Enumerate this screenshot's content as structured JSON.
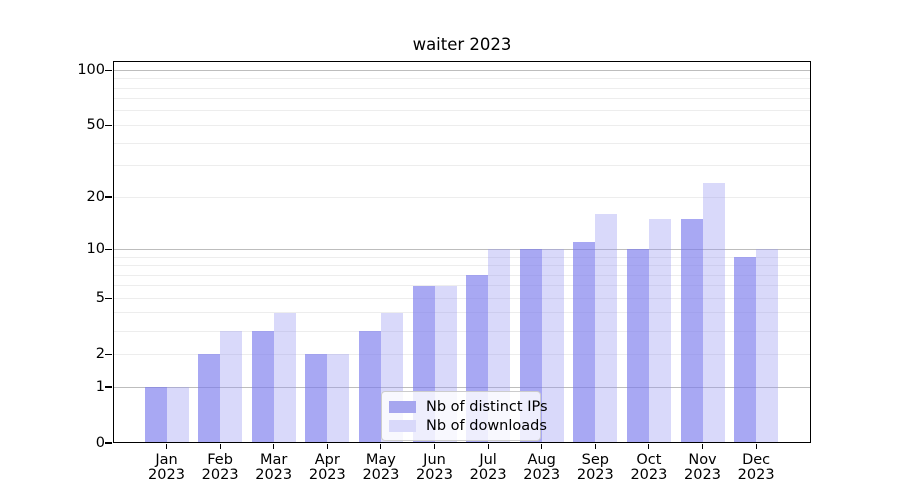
{
  "title": "waiter 2023",
  "chart_data": {
    "type": "bar",
    "title": "waiter 2023",
    "categories": [
      "Jan 2023",
      "Feb 2023",
      "Mar 2023",
      "Apr 2023",
      "May 2023",
      "Jun 2023",
      "Jul 2023",
      "Aug 2023",
      "Sep 2023",
      "Oct 2023",
      "Nov 2023",
      "Dec 2023"
    ],
    "series": [
      {
        "name": "Nb of distinct IPs",
        "values": [
          1,
          2,
          3,
          2,
          3,
          6,
          7,
          10,
          11,
          10,
          15,
          9
        ],
        "fill": "rgba(122,122,237,0.65)",
        "legend_swatch": "#a6a6ef"
      },
      {
        "name": "Nb of downloads",
        "values": [
          1,
          3,
          4,
          2,
          4,
          6,
          10,
          10,
          16,
          15,
          24,
          10
        ],
        "fill": "rgba(150,150,240,0.36)",
        "legend_swatch": "#d9d9fa"
      }
    ],
    "yscale": "log10(1+v)",
    "ylim": [
      0,
      112
    ],
    "y_tick_labels": [
      0,
      1,
      2,
      5,
      10,
      20,
      50,
      100
    ],
    "y_major_gridlines": [
      1,
      10,
      100
    ],
    "y_minor_gridlines": [
      2,
      3,
      4,
      5,
      6,
      7,
      8,
      9,
      20,
      30,
      40,
      50,
      60,
      70,
      80,
      90
    ],
    "grid": true,
    "legend_position": "lower center",
    "colors": {
      "major_grid": "#bdbdbd",
      "minor_grid": "#ededed",
      "axis": "#000000",
      "background": "#ffffff"
    }
  }
}
